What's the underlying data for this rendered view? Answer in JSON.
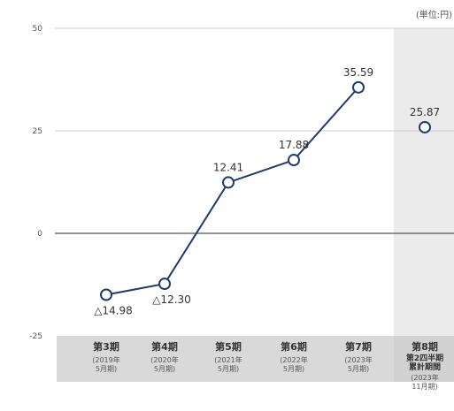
{
  "unit_label": "(単位:円)",
  "chart_data": {
    "type": "line",
    "ylim": [
      -25,
      50
    ],
    "y_ticks": [
      "50",
      "25",
      "0",
      "-25"
    ],
    "categories": [
      {
        "period_no": "3",
        "lines": [
          "第3期"
        ],
        "year": "(2019年",
        "month": "5月期)"
      },
      {
        "period_no": "4",
        "lines": [
          "第4期"
        ],
        "year": "(2020年",
        "month": "5月期)"
      },
      {
        "period_no": "5",
        "lines": [
          "第5期"
        ],
        "year": "(2021年",
        "month": "5月期)"
      },
      {
        "period_no": "6",
        "lines": [
          "第6期"
        ],
        "year": "(2022年",
        "month": "5月期)"
      },
      {
        "period_no": "7",
        "lines": [
          "第7期"
        ],
        "year": "(2023年",
        "month": "5月期)"
      },
      {
        "period_no": "8",
        "lines": [
          "第8期",
          "第2四半期",
          "累計期間"
        ],
        "year": "(2023年",
        "month": "11月期)"
      }
    ],
    "values": [
      -14.98,
      -12.3,
      12.41,
      17.88,
      35.59,
      25.87
    ],
    "labels": [
      "△14.98",
      "△12.30",
      "12.41",
      "17.88",
      "35.59",
      "25.87"
    ],
    "connected_count": 5,
    "line_color": "#1f3a6e",
    "highlight_background": "#ebebeb",
    "axis_band_color": "#d9d9d9"
  }
}
